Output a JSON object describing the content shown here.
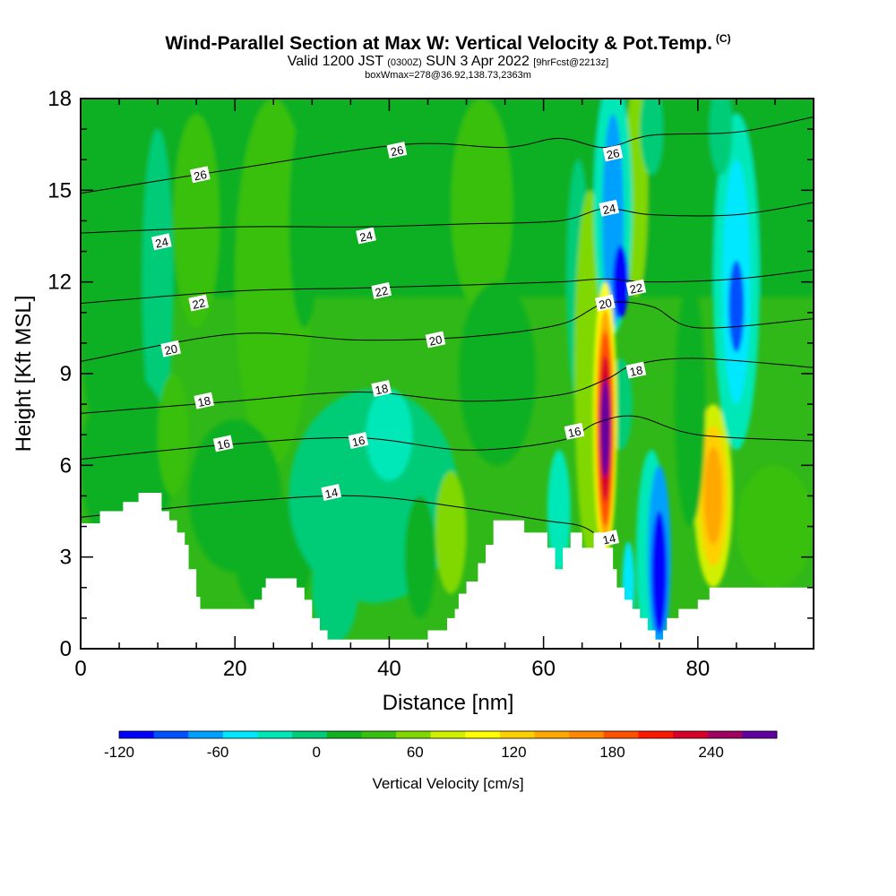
{
  "header": {
    "title": "Wind-Parallel Section at Max W: Vertical Velocity & Pot.Temp.",
    "title_mark": "(C)",
    "valid_main": "Valid 1200 JST",
    "valid_utc": "(0300Z)",
    "valid_date": "SUN 3 Apr 2022",
    "valid_fcst": "[9hrFcst@2213z]",
    "box_info": "boxWmax=278@36.92,138.73,2363m"
  },
  "chart_data": {
    "type": "heatmap",
    "xlabel": "Distance [nm]",
    "ylabel": "Height [Kft MSL]",
    "xlim": [
      0,
      95
    ],
    "ylim": [
      0,
      18
    ],
    "x_ticks": [
      0,
      20,
      40,
      60,
      80
    ],
    "y_ticks": [
      0,
      3,
      6,
      9,
      12,
      15,
      18
    ],
    "colorbar": {
      "title": "Vertical Velocity [cm/s]",
      "min": -120,
      "max": 280,
      "step": 20,
      "tick_values": [
        -120,
        -60,
        0,
        60,
        120,
        180,
        240
      ],
      "tick_labels": [
        "-120",
        "-60",
        "0",
        "60",
        "120",
        "180",
        "240"
      ],
      "colors": [
        "#0000ff",
        "#0050ff",
        "#00a0ff",
        "#00e8ff",
        "#00e8b8",
        "#00cc78",
        "#10b020",
        "#38c010",
        "#80d800",
        "#d0f000",
        "#ffff00",
        "#ffd000",
        "#ffa800",
        "#ff8800",
        "#ff5000",
        "#ff1800",
        "#d80028",
        "#a00060",
        "#6000a0"
      ]
    },
    "background_color": "#30b818",
    "terrain_profile": [
      [
        0,
        4.1
      ],
      [
        0.5,
        4.1
      ],
      [
        2.5,
        4.1
      ],
      [
        2.5,
        4.5
      ],
      [
        5.5,
        4.5
      ],
      [
        5.5,
        4.8
      ],
      [
        7.5,
        4.8
      ],
      [
        7.5,
        5.1
      ],
      [
        10.5,
        5.1
      ],
      [
        10.5,
        4.5
      ],
      [
        11.5,
        4.5
      ],
      [
        11.5,
        4.2
      ],
      [
        12.5,
        4.2
      ],
      [
        12.5,
        3.8
      ],
      [
        13.5,
        3.8
      ],
      [
        13.5,
        3.4
      ],
      [
        14.0,
        3.4
      ],
      [
        14.0,
        2.6
      ],
      [
        15.0,
        2.6
      ],
      [
        15.0,
        1.7
      ],
      [
        15.5,
        1.7
      ],
      [
        15.5,
        1.3
      ],
      [
        22.5,
        1.3
      ],
      [
        22.5,
        1.6
      ],
      [
        23.5,
        1.6
      ],
      [
        23.5,
        2.0
      ],
      [
        24.0,
        2.0
      ],
      [
        24.0,
        2.3
      ],
      [
        28.0,
        2.3
      ],
      [
        28.0,
        2.0
      ],
      [
        29.0,
        2.0
      ],
      [
        29.0,
        1.6
      ],
      [
        30.0,
        1.6
      ],
      [
        30.0,
        1.0
      ],
      [
        31.0,
        1.0
      ],
      [
        31.0,
        0.6
      ],
      [
        32.0,
        0.6
      ],
      [
        32.0,
        0.3
      ],
      [
        45.0,
        0.3
      ],
      [
        45.0,
        0.6
      ],
      [
        47.5,
        0.6
      ],
      [
        47.5,
        1.0
      ],
      [
        48.5,
        1.0
      ],
      [
        48.5,
        1.3
      ],
      [
        49.0,
        1.3
      ],
      [
        49.0,
        1.8
      ],
      [
        50.0,
        1.8
      ],
      [
        50.0,
        2.2
      ],
      [
        51.5,
        2.2
      ],
      [
        51.5,
        2.8
      ],
      [
        52.5,
        2.8
      ],
      [
        52.5,
        3.4
      ],
      [
        53.5,
        3.4
      ],
      [
        53.5,
        4.2
      ],
      [
        57.5,
        4.2
      ],
      [
        57.5,
        3.8
      ],
      [
        60.5,
        3.8
      ],
      [
        60.5,
        3.3
      ],
      [
        61.5,
        3.3
      ],
      [
        61.5,
        2.6
      ],
      [
        62.5,
        2.6
      ],
      [
        62.5,
        3.3
      ],
      [
        63.5,
        3.3
      ],
      [
        63.5,
        3.8
      ],
      [
        65.0,
        3.8
      ],
      [
        65.0,
        3.3
      ],
      [
        66.5,
        3.3
      ],
      [
        66.5,
        3.8
      ],
      [
        68.0,
        3.8
      ],
      [
        68.0,
        3.3
      ],
      [
        69.0,
        3.3
      ],
      [
        69.0,
        2.6
      ],
      [
        69.5,
        2.6
      ],
      [
        69.5,
        2.0
      ],
      [
        70.5,
        2.0
      ],
      [
        70.5,
        1.6
      ],
      [
        71.5,
        1.6
      ],
      [
        71.5,
        1.3
      ],
      [
        72.5,
        1.3
      ],
      [
        72.5,
        1.0
      ],
      [
        73.5,
        1.0
      ],
      [
        73.5,
        0.6
      ],
      [
        74.5,
        0.6
      ],
      [
        74.5,
        0.3
      ],
      [
        75.5,
        0.3
      ],
      [
        75.5,
        0.6
      ],
      [
        76.0,
        0.6
      ],
      [
        76.0,
        1.0
      ],
      [
        77.5,
        1.0
      ],
      [
        77.5,
        1.3
      ],
      [
        80.0,
        1.3
      ],
      [
        80.0,
        1.6
      ],
      [
        81.5,
        1.6
      ],
      [
        81.5,
        2.0
      ],
      [
        95,
        2.0
      ]
    ],
    "color_patches": [
      {
        "shape": "rect",
        "x0": 0,
        "x1": 95,
        "y0": 11.5,
        "y1": 18,
        "value": 10
      },
      {
        "shape": "ellipse",
        "cx": 5,
        "cy": 10.5,
        "rx": 5,
        "ry": 4.5,
        "value": 0
      },
      {
        "shape": "ellipse",
        "cx": 10,
        "cy": 12,
        "rx": 2,
        "ry": 5,
        "value": -20
      },
      {
        "shape": "ellipse",
        "cx": 15,
        "cy": 14,
        "rx": 3,
        "ry": 3.5,
        "value": 20
      },
      {
        "shape": "ellipse",
        "cx": 25,
        "cy": 12,
        "rx": 5,
        "ry": 6,
        "value": 20
      },
      {
        "shape": "ellipse",
        "cx": 29,
        "cy": 14,
        "rx": 2,
        "ry": 3.5,
        "value": 10
      },
      {
        "shape": "ellipse",
        "cx": 42,
        "cy": 15.5,
        "rx": 7,
        "ry": 2.5,
        "value": 10
      },
      {
        "shape": "ellipse",
        "cx": 52,
        "cy": 14.5,
        "rx": 4,
        "ry": 3.5,
        "value": 20
      },
      {
        "shape": "ellipse",
        "cx": 54,
        "cy": 9,
        "rx": 5,
        "ry": 3,
        "value": 0
      },
      {
        "shape": "ellipse",
        "cx": 6,
        "cy": 6,
        "rx": 6,
        "ry": 3,
        "value": 0
      },
      {
        "shape": "ellipse",
        "cx": 12,
        "cy": 7,
        "rx": 2,
        "ry": 2,
        "value": 30
      },
      {
        "shape": "ellipse",
        "cx": 20,
        "cy": 5,
        "rx": 6,
        "ry": 2.5,
        "value": 0
      },
      {
        "shape": "ellipse",
        "cx": 25,
        "cy": 3,
        "rx": 5,
        "ry": 2,
        "value": 10
      },
      {
        "shape": "ellipse",
        "cx": 38,
        "cy": 5,
        "rx": 11,
        "ry": 3.5,
        "value": -20
      },
      {
        "shape": "ellipse",
        "cx": 40,
        "cy": 7,
        "rx": 3,
        "ry": 1.5,
        "value": -30
      },
      {
        "shape": "ellipse",
        "cx": 33,
        "cy": 2,
        "rx": 3,
        "ry": 1.8,
        "value": -20
      },
      {
        "shape": "ellipse",
        "cx": 48,
        "cy": 3.8,
        "rx": 2,
        "ry": 2,
        "value": 40
      },
      {
        "shape": "ellipse",
        "cx": 44,
        "cy": 3,
        "rx": 2,
        "ry": 2,
        "value": 10
      },
      {
        "shape": "ellipse",
        "cx": 62,
        "cy": 4.5,
        "rx": 1.5,
        "ry": 2,
        "value": -40
      },
      {
        "shape": "ellipse",
        "cx": 64.5,
        "cy": 12,
        "rx": 1.5,
        "ry": 4,
        "value": -20
      },
      {
        "shape": "ellipse",
        "cx": 66,
        "cy": 9,
        "rx": 2,
        "ry": 6,
        "value": 40
      },
      {
        "shape": "ellipse",
        "cx": 72,
        "cy": 15,
        "rx": 1.5,
        "ry": 3.5,
        "value": 40
      },
      {
        "shape": "ellipse",
        "cx": 69,
        "cy": 14.5,
        "rx": 2.5,
        "ry": 4.2,
        "value": -40
      },
      {
        "shape": "ellipse",
        "cx": 69,
        "cy": 14,
        "rx": 1.4,
        "ry": 3.5,
        "value": -80
      },
      {
        "shape": "ellipse",
        "cx": 70,
        "cy": 12,
        "rx": 1.0,
        "ry": 1.2,
        "value": -110
      },
      {
        "shape": "ellipse",
        "cx": 70,
        "cy": 8,
        "rx": 1.5,
        "ry": 1.5,
        "value": -20
      },
      {
        "shape": "ellipse",
        "cx": 68,
        "cy": 7.5,
        "rx": 1.5,
        "ry": 4.5,
        "value": 80
      },
      {
        "shape": "ellipse",
        "cx": 68,
        "cy": 7.3,
        "rx": 1.2,
        "ry": 3.8,
        "value": 120
      },
      {
        "shape": "ellipse",
        "cx": 68,
        "cy": 7.2,
        "rx": 1.0,
        "ry": 3.2,
        "value": 160
      },
      {
        "shape": "ellipse",
        "cx": 68,
        "cy": 7.2,
        "rx": 0.8,
        "ry": 2.4,
        "value": 200
      },
      {
        "shape": "ellipse",
        "cx": 68,
        "cy": 7.2,
        "rx": 0.6,
        "ry": 1.6,
        "value": 240
      },
      {
        "shape": "ellipse",
        "cx": 71,
        "cy": 2.0,
        "rx": 0.8,
        "ry": 1.5,
        "value": -60
      },
      {
        "shape": "ellipse",
        "cx": 74,
        "cy": 3.0,
        "rx": 2.0,
        "ry": 3.5,
        "value": -40
      },
      {
        "shape": "ellipse",
        "cx": 75,
        "cy": 3.0,
        "rx": 1.5,
        "ry": 3.0,
        "value": -80
      },
      {
        "shape": "ellipse",
        "cx": 75,
        "cy": 2.5,
        "rx": 1.0,
        "ry": 2.0,
        "value": -120
      },
      {
        "shape": "ellipse",
        "cx": 82,
        "cy": 5,
        "rx": 2.5,
        "ry": 3,
        "value": 60
      },
      {
        "shape": "ellipse",
        "cx": 82,
        "cy": 5,
        "rx": 1.8,
        "ry": 2.3,
        "value": 100
      },
      {
        "shape": "ellipse",
        "cx": 82,
        "cy": 5,
        "rx": 1.2,
        "ry": 1.6,
        "value": 120
      },
      {
        "shape": "ellipse",
        "cx": 85,
        "cy": 12,
        "rx": 3,
        "ry": 5.5,
        "value": -30
      },
      {
        "shape": "ellipse",
        "cx": 85,
        "cy": 12,
        "rx": 1.8,
        "ry": 4,
        "value": -60
      },
      {
        "shape": "ellipse",
        "cx": 85,
        "cy": 11.2,
        "rx": 1.0,
        "ry": 1.5,
        "value": -100
      },
      {
        "shape": "ellipse",
        "cx": 83,
        "cy": 17,
        "rx": 1.5,
        "ry": 1.5,
        "value": -20
      },
      {
        "shape": "ellipse",
        "cx": 74,
        "cy": 17,
        "rx": 1.5,
        "ry": 1.5,
        "value": -20
      },
      {
        "shape": "ellipse",
        "cx": 91,
        "cy": 15,
        "rx": 3,
        "ry": 3,
        "value": 10
      },
      {
        "shape": "ellipse",
        "cx": 90,
        "cy": 4,
        "rx": 5,
        "ry": 2,
        "value": 20
      },
      {
        "shape": "ellipse",
        "cx": 79,
        "cy": 8,
        "rx": 2,
        "ry": 4,
        "value": 0
      }
    ],
    "isentropes": [
      {
        "value": 14,
        "points": [
          [
            0,
            4.3
          ],
          [
            20,
            4.8
          ],
          [
            36,
            5.0
          ],
          [
            50,
            4.6
          ],
          [
            60,
            4.2
          ],
          [
            65,
            4.0
          ],
          [
            68,
            3.5
          ]
        ]
      },
      {
        "value": 16,
        "points": [
          [
            0,
            6.2
          ],
          [
            20,
            6.7
          ],
          [
            36,
            6.9
          ],
          [
            50,
            6.5
          ],
          [
            62,
            6.8
          ],
          [
            67,
            7.4
          ],
          [
            72,
            7.6
          ],
          [
            80,
            7.0
          ],
          [
            95,
            6.8
          ]
        ]
      },
      {
        "value": 18,
        "points": [
          [
            0,
            7.7
          ],
          [
            20,
            8.1
          ],
          [
            36,
            8.4
          ],
          [
            50,
            8.1
          ],
          [
            62,
            8.3
          ],
          [
            68,
            8.8
          ],
          [
            72,
            9.3
          ],
          [
            80,
            9.5
          ],
          [
            95,
            9.2
          ]
        ]
      },
      {
        "value": 20,
        "points": [
          [
            0,
            9.4
          ],
          [
            20,
            10.3
          ],
          [
            36,
            10.1
          ],
          [
            50,
            10.2
          ],
          [
            62,
            10.6
          ],
          [
            68,
            11.3
          ],
          [
            74,
            11.2
          ],
          [
            80,
            10.5
          ],
          [
            95,
            10.8
          ]
        ]
      },
      {
        "value": 22,
        "points": [
          [
            0,
            11.3
          ],
          [
            20,
            11.7
          ],
          [
            36,
            11.8
          ],
          [
            50,
            11.9
          ],
          [
            62,
            12.0
          ],
          [
            68,
            12.1
          ],
          [
            74,
            12.0
          ],
          [
            85,
            12.1
          ],
          [
            95,
            12.4
          ]
        ]
      },
      {
        "value": 24,
        "points": [
          [
            0,
            13.6
          ],
          [
            20,
            13.8
          ],
          [
            36,
            13.8
          ],
          [
            50,
            13.9
          ],
          [
            62,
            14.0
          ],
          [
            68,
            14.4
          ],
          [
            74,
            14.2
          ],
          [
            85,
            14.2
          ],
          [
            95,
            14.6
          ]
        ]
      },
      {
        "value": 26,
        "points": [
          [
            0,
            14.9
          ],
          [
            20,
            15.7
          ],
          [
            42,
            16.5
          ],
          [
            55,
            16.4
          ],
          [
            62,
            16.7
          ],
          [
            68,
            16.4
          ],
          [
            74,
            16.8
          ],
          [
            85,
            16.9
          ],
          [
            95,
            17.4
          ]
        ]
      }
    ],
    "isentrope_labels": [
      {
        "text": "26",
        "x": 15.5,
        "y": 15.5
      },
      {
        "text": "26",
        "x": 41,
        "y": 16.3
      },
      {
        "text": "26",
        "x": 69,
        "y": 16.2
      },
      {
        "text": "24",
        "x": 10.5,
        "y": 13.3
      },
      {
        "text": "24",
        "x": 37,
        "y": 13.5
      },
      {
        "text": "24",
        "x": 68.5,
        "y": 14.4
      },
      {
        "text": "22",
        "x": 15.3,
        "y": 11.3
      },
      {
        "text": "22",
        "x": 39,
        "y": 11.7
      },
      {
        "text": "22",
        "x": 72,
        "y": 11.8
      },
      {
        "text": "20",
        "x": 11.7,
        "y": 9.8
      },
      {
        "text": "20",
        "x": 46,
        "y": 10.1
      },
      {
        "text": "20",
        "x": 68,
        "y": 11.3
      },
      {
        "text": "18",
        "x": 16,
        "y": 8.1
      },
      {
        "text": "18",
        "x": 39,
        "y": 8.5
      },
      {
        "text": "18",
        "x": 72,
        "y": 9.1
      },
      {
        "text": "16",
        "x": 18.5,
        "y": 6.7
      },
      {
        "text": "16",
        "x": 36,
        "y": 6.8
      },
      {
        "text": "16",
        "x": 64,
        "y": 7.1
      },
      {
        "text": "14",
        "x": 32.5,
        "y": 5.1
      },
      {
        "text": "14",
        "x": 68.5,
        "y": 3.6
      }
    ]
  }
}
